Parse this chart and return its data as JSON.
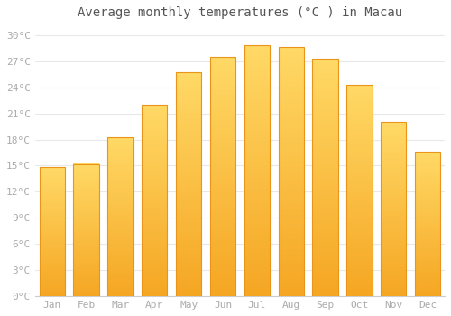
{
  "title": "Average monthly temperatures (°C ) in Macau",
  "months": [
    "Jan",
    "Feb",
    "Mar",
    "Apr",
    "May",
    "Jun",
    "Jul",
    "Aug",
    "Sep",
    "Oct",
    "Nov",
    "Dec"
  ],
  "temperatures": [
    14.8,
    15.2,
    18.3,
    22.0,
    25.7,
    27.5,
    28.8,
    28.6,
    27.3,
    24.3,
    20.0,
    16.6
  ],
  "bar_color_bottom": "#F5A623",
  "bar_color_top": "#FFD966",
  "bar_edge_color": "#E8951A",
  "background_color": "#ffffff",
  "grid_color": "#e8e8e8",
  "ytick_labels": [
    "0°C",
    "3°C",
    "6°C",
    "9°C",
    "12°C",
    "15°C",
    "18°C",
    "21°C",
    "24°C",
    "27°C",
    "30°C"
  ],
  "ytick_values": [
    0,
    3,
    6,
    9,
    12,
    15,
    18,
    21,
    24,
    27,
    30
  ],
  "ylim": [
    0,
    31
  ],
  "title_fontsize": 10,
  "tick_fontsize": 8,
  "font_family": "monospace",
  "bar_width": 0.75
}
